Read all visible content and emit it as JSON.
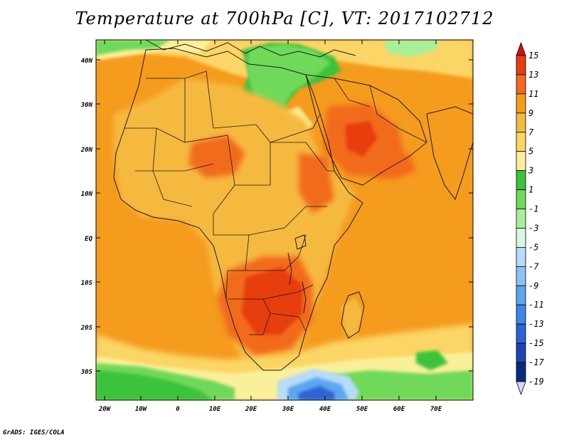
{
  "title": "Temperature at 700hPa [C], VT: 2017102712",
  "credit": "GrADS: IGES/COLA",
  "lat_labels": [
    "40N",
    "30N",
    "20N",
    "10N",
    "EQ",
    "10S",
    "20S",
    "30S"
  ],
  "lon_labels": [
    "20W",
    "10W",
    "0",
    "10E",
    "20E",
    "30E",
    "40E",
    "50E",
    "60E",
    "70E"
  ],
  "colorbar": {
    "levels": [
      "15",
      "13",
      "11",
      "9",
      "7",
      "5",
      "3",
      "1",
      "-1",
      "-3",
      "-5",
      "-7",
      "-9",
      "-11",
      "-13",
      "-15",
      "-17",
      "-19"
    ],
    "colors": [
      "#d4100b",
      "#e83d11",
      "#f26a1e",
      "#f59b1e",
      "#f6b93f",
      "#fbd566",
      "#fbf09a",
      "#3ec23a",
      "#6fd95a",
      "#a9ef99",
      "#d8f6e0",
      "#b7dcf8",
      "#8dc3f4",
      "#5ca5ef",
      "#3f87e7",
      "#2d64d3",
      "#1b45b4",
      "#0a2a80",
      "#1a1a7a"
    ]
  },
  "map_colors": {
    "ocean_warm": "#f59b1e",
    "land_warm": "#f6b93f",
    "hot": "#f26a1e",
    "hottest": "#e83d11",
    "mild": "#fbd566",
    "cool": "#fbf09a",
    "green": "#3ec23a",
    "green_light": "#6fd95a",
    "pale": "#a9ef99",
    "blue": "#5ca5ef",
    "blue_light": "#8dc3f4",
    "blue_dark": "#2d64d3"
  }
}
